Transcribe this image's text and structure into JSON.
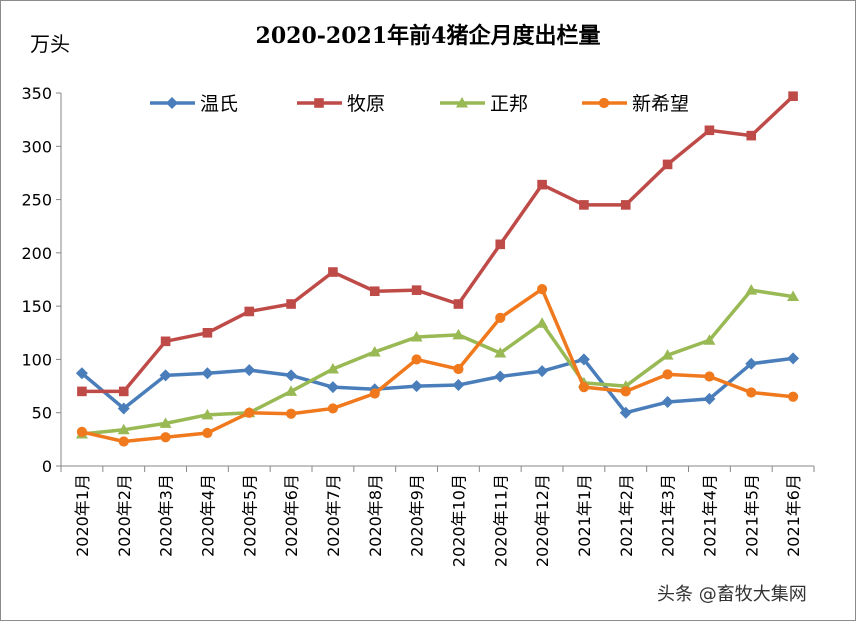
{
  "chart_data": {
    "type": "line",
    "title": "2020-2021年前4猪企月度出栏量",
    "ylabel": "万头",
    "xlabel": "",
    "ylim": [
      0,
      350
    ],
    "yticks": [
      0,
      50,
      100,
      150,
      200,
      250,
      300,
      350
    ],
    "grid": false,
    "legend_position": "top",
    "categories": [
      "2020年1月",
      "2020年2月",
      "2020年3月",
      "2020年4月",
      "2020年5月",
      "2020年6月",
      "2020年7月",
      "2020年8月",
      "2020年9月",
      "2020年10月",
      "2020年11月",
      "2020年12月",
      "2021年1月",
      "2021年2月",
      "2021年3月",
      "2021年4月",
      "2021年5月",
      "2021年6月"
    ],
    "series": [
      {
        "name": "温氏",
        "color": "#4a7ebb",
        "marker": "diamond",
        "values": [
          87,
          54,
          85,
          87,
          90,
          85,
          74,
          72,
          75,
          76,
          84,
          89,
          100,
          50,
          60,
          63,
          96,
          101
        ]
      },
      {
        "name": "牧原",
        "color": "#be4b48",
        "marker": "square",
        "values": [
          70,
          70,
          117,
          125,
          145,
          152,
          182,
          164,
          165,
          152,
          208,
          264,
          245,
          245,
          283,
          315,
          310,
          347
        ]
      },
      {
        "name": "正邦",
        "color": "#98b954",
        "marker": "triangle",
        "values": [
          30,
          34,
          40,
          48,
          50,
          70,
          91,
          107,
          121,
          123,
          106,
          134,
          78,
          75,
          104,
          118,
          165,
          159
        ]
      },
      {
        "name": "新希望",
        "color": "#f0791e",
        "marker": "circle",
        "values": [
          32,
          23,
          27,
          31,
          50,
          49,
          54,
          68,
          100,
          91,
          139,
          166,
          74,
          70,
          86,
          84,
          69,
          65
        ]
      }
    ]
  },
  "watermark": "头条 @畜牧大集网"
}
